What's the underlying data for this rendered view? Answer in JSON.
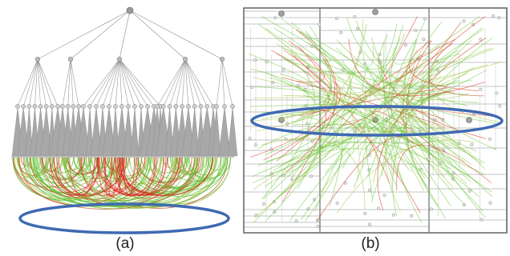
{
  "panels": [
    {
      "label": "(a)"
    },
    {
      "label": "(b)"
    }
  ],
  "colors": {
    "hierarchy_node": "#8e8e8e",
    "hierarchy_edge": "#9a9a9a",
    "edge_start": "#3fbf1f",
    "edge_end": "#d8221a",
    "highlight": "#3f6ab2",
    "treemap_border": "#6a6a6a"
  }
}
